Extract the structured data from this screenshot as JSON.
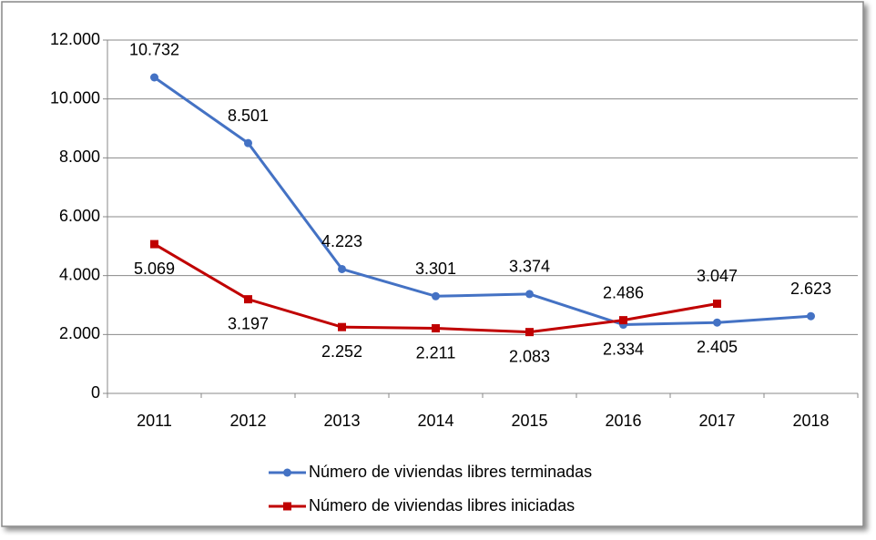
{
  "chart_data": {
    "type": "line",
    "categories": [
      "2011",
      "2012",
      "2013",
      "2014",
      "2015",
      "2016",
      "2017",
      "2018"
    ],
    "series": [
      {
        "name": "Número de viviendas libres terminadas",
        "color": "#4472c4",
        "marker": "circle",
        "values": [
          10732,
          8501,
          4223,
          3301,
          3374,
          2334,
          2405,
          2623
        ],
        "value_labels": [
          "10.732",
          "8.501",
          "4.223",
          "3.301",
          "3.374",
          "2.334",
          "2.405",
          "2.623"
        ]
      },
      {
        "name": "Número de viviendas libres iniciadas",
        "color": "#c00000",
        "marker": "square",
        "values": [
          5069,
          3197,
          2252,
          2211,
          2083,
          2486,
          3047,
          null
        ],
        "value_labels": [
          "5.069",
          "3.197",
          "2.252",
          "2.211",
          "2.083",
          "2.486",
          "3.047",
          null
        ]
      }
    ],
    "ylim": [
      0,
      12000
    ],
    "yticks": [
      0,
      {
        "value": 2000,
        "label": "2.000"
      },
      {
        "value": 4000,
        "label": "4.000"
      },
      {
        "value": 6000,
        "label": "6.000"
      },
      {
        "value": 8000,
        "label": "8.000"
      },
      {
        "value": 10000,
        "label": "10.000"
      },
      {
        "value": 12000,
        "label": "12.000"
      }
    ],
    "grid": true,
    "legend": "bottom"
  }
}
